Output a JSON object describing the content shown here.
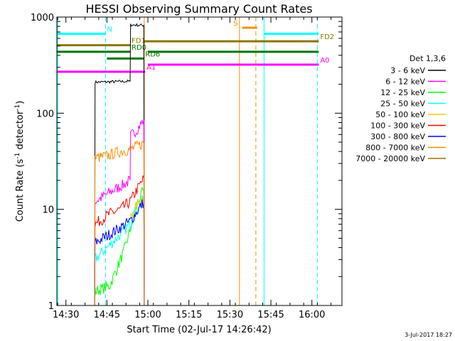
{
  "chart_data": {
    "type": "line",
    "title": "HESSI Observing Summary Count Rates",
    "xlabel": "Start Time (02-Jul-17 14:26:42)",
    "ylabel_parts": [
      "Count Rate (s",
      "-1",
      " detector",
      "-1",
      ")"
    ],
    "x_time_range": [
      "14:26:42",
      "16:11:00"
    ],
    "ylim": [
      1,
      1000
    ],
    "yscale": "log",
    "x_ticks": [
      "14:30",
      "14:45",
      "15:00",
      "15:15",
      "15:30",
      "15:45",
      "16:00"
    ],
    "y_ticks": [
      {
        "value": 1,
        "label": "1"
      },
      {
        "value": 10,
        "label": "10"
      },
      {
        "value": 100,
        "label": "100"
      },
      {
        "value": 1000,
        "label": "1000"
      }
    ],
    "legend_title": "Det 1,3,6",
    "series": [
      {
        "name": "3 - 6 keV",
        "color": "#000000",
        "segments": [
          [
            [
              "14:40:30",
              1
            ],
            [
              "14:40:40",
              210
            ],
            [
              "14:53:30",
              215
            ],
            [
              "14:53:40",
              830
            ],
            [
              "14:58:30",
              820
            ],
            [
              "14:58:40",
              1
            ]
          ]
        ]
      },
      {
        "name": "6 - 12 keV",
        "color": "#ff00ff",
        "segments": [
          [
            [
              "14:40:30",
              1
            ],
            [
              "14:40:40",
              12
            ],
            [
              "14:46:00",
              15
            ],
            [
              "14:51:00",
              18
            ],
            [
              "14:53:30",
              20
            ],
            [
              "14:53:40",
              58
            ],
            [
              "14:56:00",
              68
            ],
            [
              "14:58:30",
              85
            ],
            [
              "14:58:40",
              1
            ]
          ]
        ]
      },
      {
        "name": "12 - 25 keV",
        "color": "#00ff00",
        "segments": [
          [
            [
              "14:40:30",
              1
            ],
            [
              "14:40:40",
              1.4
            ],
            [
              "14:46:00",
              1.6
            ],
            [
              "14:51:00",
              3.5
            ],
            [
              "14:53:30",
              6
            ],
            [
              "14:55:00",
              10
            ],
            [
              "14:58:30",
              16
            ],
            [
              "14:58:40",
              1
            ]
          ]
        ]
      },
      {
        "name": "25 - 50 keV",
        "color": "#00ffff",
        "segments": [
          [
            [
              "14:40:30",
              1
            ],
            [
              "14:40:40",
              3
            ],
            [
              "14:45:00",
              4
            ],
            [
              "14:50:00",
              5.5
            ],
            [
              "14:53:30",
              7
            ],
            [
              "14:56:00",
              10
            ],
            [
              "14:58:30",
              13
            ],
            [
              "14:58:40",
              1
            ]
          ]
        ]
      },
      {
        "name": "50 - 100 keV",
        "color": "#ffcc00",
        "segments": [
          [
            [
              "14:53:30",
              8
            ],
            [
              "14:56:00",
              11
            ],
            [
              "14:58:30",
              14
            ]
          ]
        ]
      },
      {
        "name": "100 - 300 keV",
        "color": "#ff0000",
        "segments": [
          [
            [
              "14:40:30",
              1
            ],
            [
              "14:40:40",
              7
            ],
            [
              "14:46:00",
              9
            ],
            [
              "14:50:00",
              10
            ],
            [
              "14:53:30",
              12
            ],
            [
              "14:56:00",
              16
            ],
            [
              "14:58:30",
              21
            ],
            [
              "14:58:40",
              1
            ]
          ]
        ]
      },
      {
        "name": "300 - 800 keV",
        "color": "#0000ff",
        "segments": [
          [
            [
              "14:40:30",
              1
            ],
            [
              "14:40:40",
              4.5
            ],
            [
              "14:46:00",
              5.5
            ],
            [
              "14:50:00",
              6.5
            ],
            [
              "14:53:30",
              7.5
            ],
            [
              "14:56:00",
              9.5
            ],
            [
              "14:58:30",
              12
            ],
            [
              "14:58:40",
              1
            ]
          ]
        ]
      },
      {
        "name": "800 - 7000 keV",
        "color": "#ff8c00",
        "segments": [
          [
            [
              "14:40:30",
              1
            ],
            [
              "14:40:40",
              34
            ],
            [
              "14:45:00",
              36
            ],
            [
              "14:50:00",
              40
            ],
            [
              "14:53:30",
              42
            ],
            [
              "14:56:00",
              45
            ],
            [
              "14:58:30",
              49
            ],
            [
              "14:58:40",
              1
            ]
          ]
        ]
      },
      {
        "name": "7000 - 20000 keV",
        "color": "#9a7000",
        "segments": []
      }
    ],
    "flag_bars": [
      {
        "label": "N",
        "color": "#00ffff",
        "level": 670,
        "spans": [
          [
            "14:26:42",
            "14:44:30"
          ],
          [
            "15:42:30",
            "16:02:30"
          ]
        ]
      },
      {
        "label": "FD1",
        "color": "#8b7500",
        "level": 510,
        "spans": [
          [
            "14:26:42",
            "14:53:30"
          ]
        ]
      },
      {
        "label": "FD2",
        "color": "#8b7500",
        "level": 560,
        "spans": [
          [
            "14:58:40",
            "16:02:30"
          ]
        ]
      },
      {
        "label": "RD0",
        "color": "#007800",
        "level": 435,
        "spans": [
          [
            "14:26:42",
            "14:53:30"
          ],
          [
            "15:00:00",
            "16:02:30"
          ]
        ]
      },
      {
        "label": "RD6",
        "color": "#007800",
        "level": 370,
        "spans": [
          [
            "14:45:00",
            "14:58:30"
          ]
        ]
      },
      {
        "label": "A0",
        "color": "#ff00ff",
        "level": 320,
        "spans": [
          [
            "15:00:00",
            "16:02:30"
          ]
        ]
      },
      {
        "label": "A1",
        "color": "#ff00ff",
        "level": 270,
        "spans": [
          [
            "14:26:42",
            "14:59:00"
          ]
        ]
      },
      {
        "label": "S",
        "color": "#ff8c00",
        "level": 775,
        "spans": [
          [
            "15:34:30",
            "15:40:00"
          ]
        ]
      }
    ],
    "vertical_lines": [
      {
        "time": "14:27:00",
        "color": "#00ffff",
        "style": "solid"
      },
      {
        "time": "14:44:30",
        "color": "#00ffff",
        "style": "dashed"
      },
      {
        "time": "14:58:40",
        "color": "#ff8c00",
        "style": "solid"
      },
      {
        "time": "15:33:30",
        "color": "#ff8c00",
        "style": "solid"
      },
      {
        "time": "15:39:30",
        "color": "#ff8c00",
        "style": "dashed"
      },
      {
        "time": "15:42:30",
        "color": "#00ffff",
        "style": "solid"
      },
      {
        "time": "16:02:00",
        "color": "#00ffff",
        "style": "dashed"
      }
    ]
  },
  "footer": {
    "date_stamp": "3-Jul-2017 18:27"
  }
}
